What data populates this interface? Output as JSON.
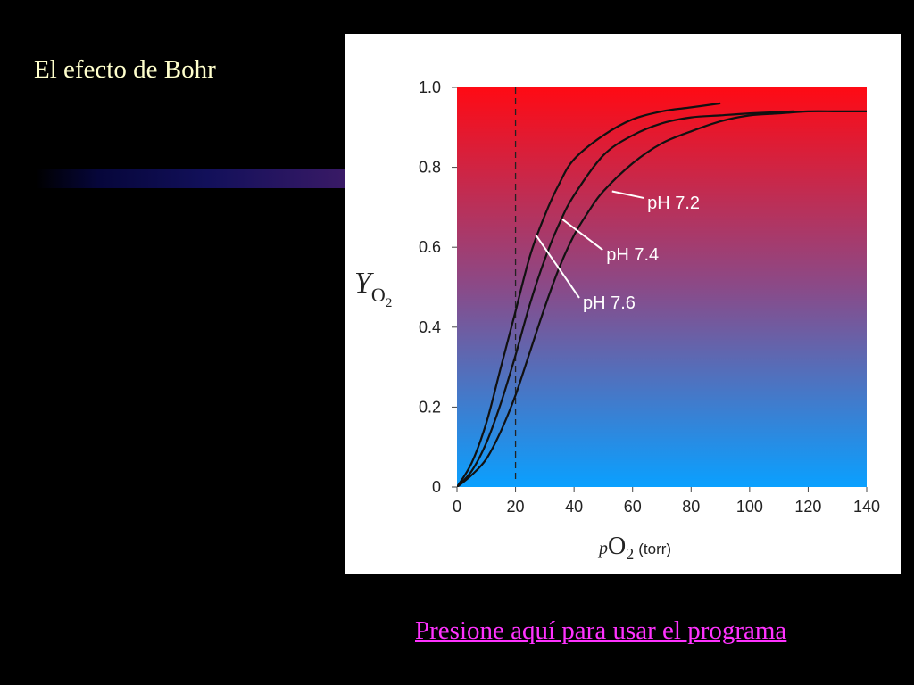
{
  "slide": {
    "title": "El efecto de Bohr",
    "link_text": "Presione aquí para usar el programa"
  },
  "colors": {
    "background": "#000000",
    "title": "#ffffcc",
    "link": "#ff33ff",
    "gradient_top": "#ff0a14",
    "gradient_mid": "#8a4a88",
    "gradient_bottom": "#0aa0ff"
  },
  "chart_data": {
    "type": "line",
    "ylabel_main": "Y",
    "ylabel_sub": "O",
    "ylabel_subsub": "2",
    "xlabel_prefix": "p",
    "xlabel_main": "O",
    "xlabel_sub": "2",
    "xlabel_unit": "(torr)",
    "xlim": [
      0,
      140
    ],
    "ylim": [
      0,
      1.0
    ],
    "x_ticks": [
      0,
      20,
      40,
      60,
      80,
      100,
      120,
      140
    ],
    "x_tick_labels": [
      "0",
      "20",
      "40",
      "60",
      "80",
      "100",
      "120",
      "140"
    ],
    "y_ticks": [
      0,
      0.2,
      0.4,
      0.6,
      0.8,
      1.0
    ],
    "y_tick_labels": [
      "0",
      "0.2",
      "0.4",
      "0.6",
      "0.8",
      "1.0"
    ],
    "reference_line_x": 20,
    "series": [
      {
        "name": "pH 7.6",
        "x": [
          0,
          5,
          10,
          15,
          20,
          25,
          30,
          35,
          40,
          50,
          60,
          70,
          80,
          90
        ],
        "y": [
          0,
          0.06,
          0.16,
          0.3,
          0.44,
          0.58,
          0.68,
          0.76,
          0.82,
          0.88,
          0.92,
          0.94,
          0.95,
          0.96
        ],
        "label_anchor": [
          27,
          0.63
        ]
      },
      {
        "name": "pH 7.4",
        "x": [
          0,
          5,
          10,
          15,
          20,
          25,
          30,
          35,
          40,
          50,
          60,
          70,
          80,
          90,
          100,
          115
        ],
        "y": [
          0,
          0.04,
          0.11,
          0.21,
          0.33,
          0.46,
          0.57,
          0.66,
          0.73,
          0.83,
          0.88,
          0.91,
          0.925,
          0.93,
          0.935,
          0.94
        ],
        "label_anchor": [
          36,
          0.67
        ]
      },
      {
        "name": "pH 7.2",
        "x": [
          0,
          5,
          10,
          15,
          20,
          25,
          30,
          35,
          40,
          45,
          50,
          60,
          70,
          80,
          90,
          100,
          110,
          120,
          130,
          140
        ],
        "y": [
          0,
          0.03,
          0.07,
          0.14,
          0.23,
          0.34,
          0.45,
          0.55,
          0.63,
          0.69,
          0.74,
          0.81,
          0.86,
          0.89,
          0.915,
          0.93,
          0.935,
          0.94,
          0.94,
          0.94
        ],
        "label_anchor": [
          53,
          0.74
        ]
      }
    ],
    "label_positions": [
      {
        "name": "pH 7.6",
        "x": 43,
        "y": 0.46
      },
      {
        "name": "pH 7.4",
        "x": 51,
        "y": 0.58
      },
      {
        "name": "pH 7.2",
        "x": 65,
        "y": 0.71
      }
    ]
  }
}
